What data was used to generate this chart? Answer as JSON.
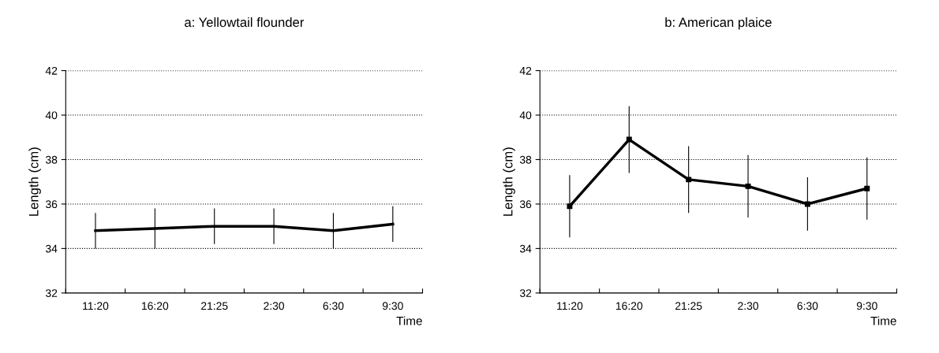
{
  "chart_data": [
    {
      "type": "line",
      "title": "a: Yellowtail flounder",
      "xlabel": "Time",
      "ylabel": "Length (cm)",
      "categories": [
        "11:20",
        "16:20",
        "21:25",
        "2:30",
        "6:30",
        "9:30"
      ],
      "series": [
        {
          "color": "#000000",
          "values": [
            34.8,
            34.9,
            35.0,
            35.0,
            34.8,
            35.1
          ],
          "errors": [
            0.8,
            0.9,
            0.8,
            0.8,
            0.8,
            0.8
          ]
        }
      ],
      "ylim": [
        32,
        42
      ],
      "yticks": [
        32,
        34,
        36,
        38,
        40,
        42
      ],
      "grid": "y",
      "marker": "none",
      "line_style": "solid"
    },
    {
      "type": "line",
      "title": "b: American plaice",
      "xlabel": "Time",
      "ylabel": "Length (cm)",
      "categories": [
        "11:20",
        "16:20",
        "21:25",
        "2:30",
        "6:30",
        "9:30"
      ],
      "series": [
        {
          "color": "#000000",
          "values": [
            35.9,
            38.9,
            37.1,
            36.8,
            36.0,
            36.7
          ],
          "errors": [
            1.4,
            1.5,
            1.5,
            1.4,
            1.2,
            1.4
          ]
        }
      ],
      "ylim": [
        32,
        42
      ],
      "yticks": [
        32,
        34,
        36,
        38,
        40,
        42
      ],
      "grid": "y",
      "marker": "square",
      "line_style": "solid"
    }
  ]
}
